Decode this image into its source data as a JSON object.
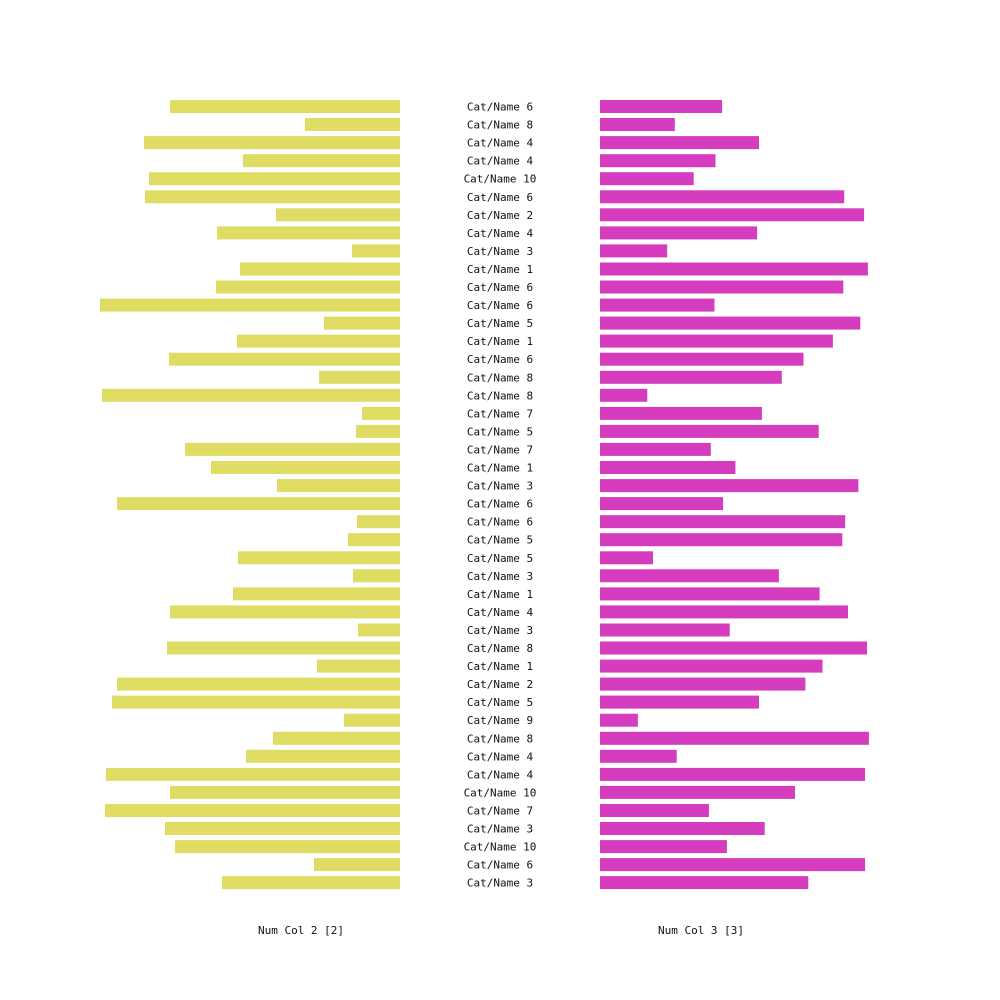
{
  "chart_data": {
    "type": "bar",
    "layout": "butterfly",
    "categories": [
      "Cat/Name 6",
      "Cat/Name 8",
      "Cat/Name 4",
      "Cat/Name 4",
      "Cat/Name 10",
      "Cat/Name 6",
      "Cat/Name 2",
      "Cat/Name 4",
      "Cat/Name 3",
      "Cat/Name 1",
      "Cat/Name 6",
      "Cat/Name 6",
      "Cat/Name 5",
      "Cat/Name 1",
      "Cat/Name 6",
      "Cat/Name 8",
      "Cat/Name 8",
      "Cat/Name 7",
      "Cat/Name 5",
      "Cat/Name 7",
      "Cat/Name 1",
      "Cat/Name 3",
      "Cat/Name 6",
      "Cat/Name 6",
      "Cat/Name 5",
      "Cat/Name 5",
      "Cat/Name 3",
      "Cat/Name 1",
      "Cat/Name 4",
      "Cat/Name 3",
      "Cat/Name 8",
      "Cat/Name 1",
      "Cat/Name 2",
      "Cat/Name 5",
      "Cat/Name 9",
      "Cat/Name 8",
      "Cat/Name 4",
      "Cat/Name 4",
      "Cat/Name 10",
      "Cat/Name 7",
      "Cat/Name 3",
      "Cat/Name 10",
      "Cat/Name 6",
      "Cat/Name 3"
    ],
    "series": [
      {
        "name": "Num Col 2 [2]",
        "color": "#dedc62",
        "side": "left",
        "values": [
          230,
          95,
          256,
          157,
          251,
          255,
          124,
          183,
          48,
          160,
          184,
          300,
          76,
          163,
          231,
          81,
          298,
          38,
          44,
          215,
          189,
          123,
          283,
          43,
          52,
          162,
          47,
          167,
          230,
          42,
          233,
          83,
          283,
          288,
          56,
          127,
          154,
          294,
          230,
          295,
          235,
          225,
          86,
          178
        ]
      },
      {
        "name": "Num Col 3 [3]",
        "color": "#d63cbe",
        "side": "right",
        "values": [
          129,
          79,
          168,
          122,
          99,
          258,
          279,
          166,
          71,
          283,
          257,
          121,
          275,
          246,
          215,
          192,
          50,
          171,
          231,
          117,
          143,
          273,
          130,
          259,
          256,
          56,
          189,
          232,
          262,
          137,
          282,
          235,
          217,
          168,
          40,
          284,
          81,
          280,
          206,
          115,
          174,
          134,
          280,
          220
        ]
      }
    ],
    "xlim_left": [
      0,
      300
    ],
    "xlim_right": [
      0,
      300
    ],
    "grid": false,
    "legend": "none"
  }
}
